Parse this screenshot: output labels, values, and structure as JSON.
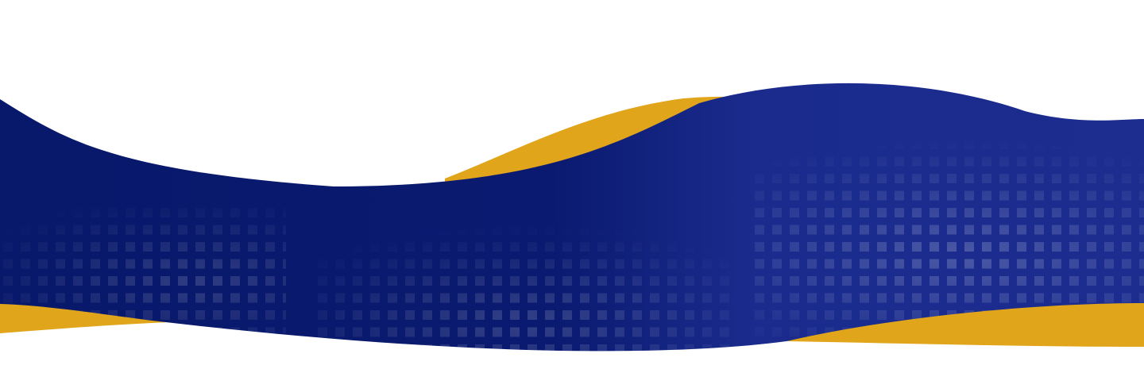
{
  "banner": {
    "colors": {
      "background": "#ffffff",
      "navy_dark": "#08186a",
      "navy_light": "#1c2d8f",
      "gold": "#e0a51a",
      "dot_light": "#3a55b8"
    }
  }
}
